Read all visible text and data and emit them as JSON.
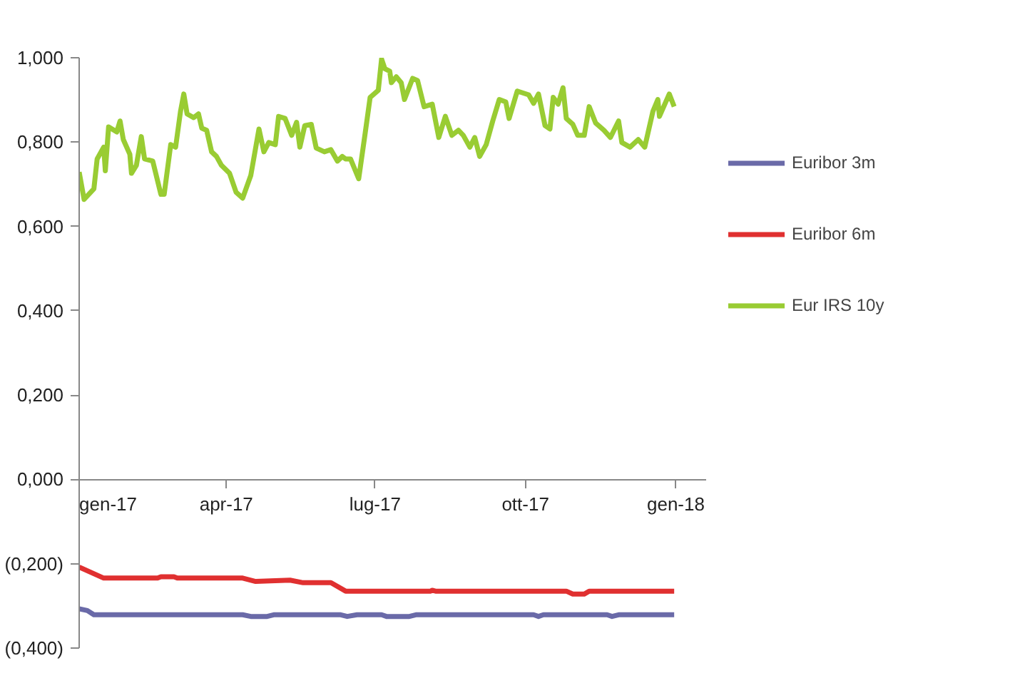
{
  "chart_data": {
    "type": "line",
    "legend": "right",
    "grid": false,
    "marker": "none",
    "line_style": "solid",
    "xlim": [
      "2017-01-01",
      "2018-01-20"
    ],
    "xticks": [
      {
        "value": "2017-01-01",
        "label": "gen-17"
      },
      {
        "value": "2017-04-01",
        "label": "apr-17"
      },
      {
        "value": "2017-07-01",
        "label": "lug-17"
      },
      {
        "value": "2017-10-01",
        "label": "ott-17"
      },
      {
        "value": "2018-01-01",
        "label": "gen-18"
      }
    ],
    "ylim": [
      -0.4,
      1.0
    ],
    "yticks": [
      {
        "value": 1.0,
        "label": "1,000"
      },
      {
        "value": 0.8,
        "label": "0,800"
      },
      {
        "value": 0.6,
        "label": "0,600"
      },
      {
        "value": 0.4,
        "label": "0,400"
      },
      {
        "value": 0.2,
        "label": "0,200"
      },
      {
        "value": 0,
        "label": "0,000"
      },
      {
        "value": -0.2,
        "label": "(0,200)"
      },
      {
        "value": -0.4,
        "label": "(0,400)"
      }
    ],
    "series": [
      {
        "name": "Euribor 3m",
        "color": "#6a6aa8",
        "x": [
          "2017-01-01",
          "2017-01-06",
          "2017-01-10",
          "2017-04-11",
          "2017-04-16",
          "2017-04-26",
          "2017-04-30",
          "2017-06-10",
          "2017-06-14",
          "2017-06-20",
          "2017-07-05",
          "2017-07-08",
          "2017-07-22",
          "2017-07-26",
          "2017-10-06",
          "2017-10-09",
          "2017-10-12",
          "2017-11-20",
          "2017-11-23",
          "2017-11-27",
          "2017-12-31"
        ],
        "values": [
          -0.307,
          -0.311,
          -0.321,
          -0.321,
          -0.325,
          -0.325,
          -0.321,
          -0.321,
          -0.325,
          -0.321,
          -0.321,
          -0.325,
          -0.325,
          -0.321,
          -0.321,
          -0.325,
          -0.321,
          -0.321,
          -0.325,
          -0.321,
          -0.321
        ]
      },
      {
        "name": "Euribor 6m",
        "color": "#e03030",
        "x": [
          "2017-01-01",
          "2017-01-16",
          "2017-02-18",
          "2017-02-20",
          "2017-02-28",
          "2017-03-02",
          "2017-04-11",
          "2017-04-19",
          "2017-05-10",
          "2017-05-18",
          "2017-06-04",
          "2017-06-13",
          "2017-08-04",
          "2017-08-05",
          "2017-08-07",
          "2017-10-26",
          "2017-10-30",
          "2017-11-06",
          "2017-11-09",
          "2017-12-31"
        ],
        "values": [
          -0.208,
          -0.234,
          -0.234,
          -0.231,
          -0.231,
          -0.234,
          -0.234,
          -0.242,
          -0.239,
          -0.245,
          -0.245,
          -0.265,
          -0.265,
          -0.263,
          -0.265,
          -0.265,
          -0.272,
          -0.272,
          -0.265,
          -0.265
        ]
      },
      {
        "name": "Eur IRS 10y",
        "color": "#99cc33",
        "x": [
          "2017-01-01",
          "2017-01-04",
          "2017-01-10",
          "2017-01-12",
          "2017-01-16",
          "2017-01-17",
          "2017-01-19",
          "2017-01-24",
          "2017-01-26",
          "2017-01-28",
          "2017-02-01",
          "2017-02-02",
          "2017-02-05",
          "2017-02-08",
          "2017-02-10",
          "2017-02-15",
          "2017-02-20",
          "2017-02-22",
          "2017-02-26",
          "2017-03-01",
          "2017-03-04",
          "2017-03-06",
          "2017-03-08",
          "2017-03-12",
          "2017-03-15",
          "2017-03-17",
          "2017-03-20",
          "2017-03-23",
          "2017-03-26",
          "2017-03-29",
          "2017-04-03",
          "2017-04-07",
          "2017-04-11",
          "2017-04-16",
          "2017-04-21",
          "2017-04-24",
          "2017-04-27",
          "2017-05-01",
          "2017-05-03",
          "2017-05-07",
          "2017-05-11",
          "2017-05-14",
          "2017-05-16",
          "2017-05-19",
          "2017-05-23",
          "2017-05-26",
          "2017-05-31",
          "2017-06-04",
          "2017-06-08",
          "2017-06-11",
          "2017-06-13",
          "2017-06-16",
          "2017-06-21",
          "2017-06-25",
          "2017-06-28",
          "2017-07-03",
          "2017-07-05",
          "2017-07-07",
          "2017-07-10",
          "2017-07-11",
          "2017-07-14",
          "2017-07-17",
          "2017-07-19",
          "2017-07-24",
          "2017-07-27",
          "2017-07-31",
          "2017-08-05",
          "2017-08-09",
          "2017-08-13",
          "2017-08-17",
          "2017-08-21",
          "2017-08-24",
          "2017-08-28",
          "2017-08-31",
          "2017-09-03",
          "2017-09-07",
          "2017-09-11",
          "2017-09-15",
          "2017-09-19",
          "2017-09-21",
          "2017-09-26",
          "2017-10-03",
          "2017-10-06",
          "2017-10-09",
          "2017-10-13",
          "2017-10-16",
          "2017-10-18",
          "2017-10-21",
          "2017-10-24",
          "2017-10-26",
          "2017-10-30",
          "2017-11-02",
          "2017-11-06",
          "2017-11-09",
          "2017-11-13",
          "2017-11-18",
          "2017-11-22",
          "2017-11-27",
          "2017-11-29",
          "2017-12-04",
          "2017-12-09",
          "2017-12-13",
          "2017-12-18",
          "2017-12-21",
          "2017-12-22",
          "2017-12-28",
          "2017-12-31"
        ],
        "values": [
          0.729,
          0.664,
          0.689,
          0.76,
          0.788,
          0.732,
          0.836,
          0.824,
          0.85,
          0.806,
          0.771,
          0.726,
          0.745,
          0.813,
          0.76,
          0.755,
          0.676,
          0.676,
          0.794,
          0.788,
          0.873,
          0.914,
          0.867,
          0.858,
          0.867,
          0.833,
          0.828,
          0.777,
          0.766,
          0.745,
          0.726,
          0.681,
          0.667,
          0.721,
          0.831,
          0.777,
          0.799,
          0.794,
          0.861,
          0.856,
          0.816,
          0.847,
          0.788,
          0.839,
          0.842,
          0.786,
          0.777,
          0.782,
          0.755,
          0.766,
          0.76,
          0.76,
          0.713,
          0.822,
          0.906,
          0.923,
          0.997,
          0.974,
          0.968,
          0.941,
          0.955,
          0.941,
          0.901,
          0.951,
          0.946,
          0.884,
          0.89,
          0.811,
          0.861,
          0.816,
          0.828,
          0.816,
          0.788,
          0.811,
          0.766,
          0.794,
          0.85,
          0.901,
          0.895,
          0.856,
          0.921,
          0.912,
          0.892,
          0.914,
          0.839,
          0.831,
          0.906,
          0.89,
          0.929,
          0.856,
          0.842,
          0.816,
          0.816,
          0.884,
          0.845,
          0.828,
          0.811,
          0.85,
          0.799,
          0.788,
          0.806,
          0.788,
          0.873,
          0.901,
          0.861,
          0.914,
          0.884
        ]
      }
    ]
  }
}
